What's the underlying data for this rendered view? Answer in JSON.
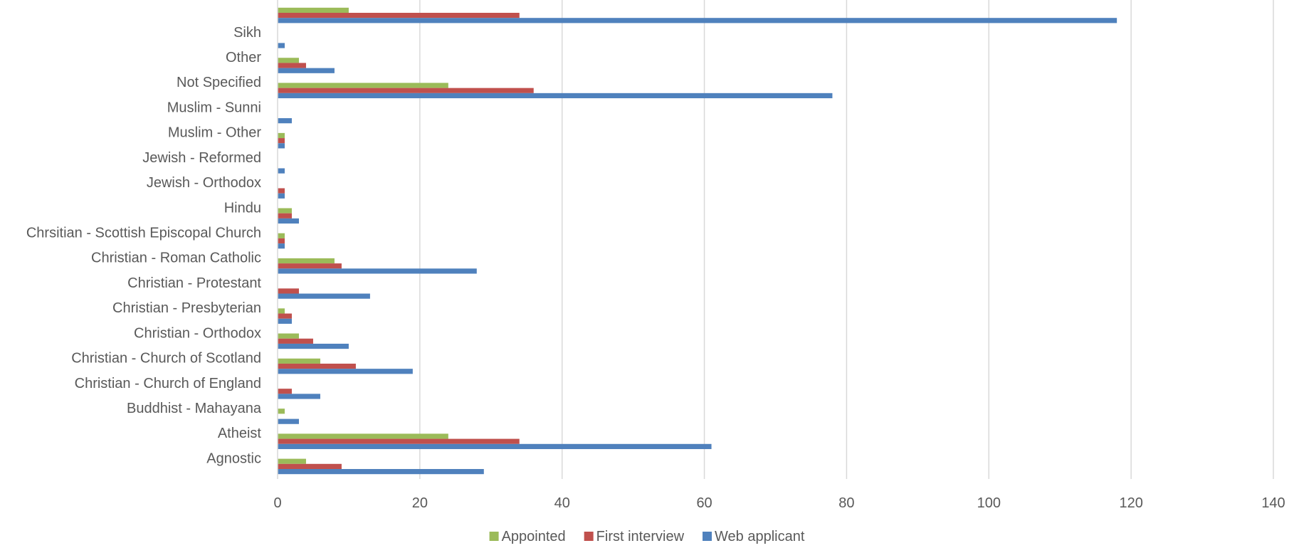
{
  "chart_data": {
    "type": "bar",
    "orientation": "horizontal",
    "categories": [
      "Agnostic",
      "Atheist",
      "Buddhist - Mahayana",
      "Christian - Church of England",
      "Christian - Church of Scotland",
      "Christian - Orthodox",
      "Christian - Presbyterian",
      "Christian - Protestant",
      "Christian - Roman Catholic",
      "Chrsitian - Scottish Episcopal Church",
      "Hindu",
      "Jewish - Orthodox",
      "Jewish - Reformed",
      "Muslim - Other",
      "Muslim - Sunni",
      "Not Specified",
      "Other",
      "Sikh",
      ""
    ],
    "series": [
      {
        "name": "Appointed",
        "color": "#9BBB59",
        "values": [
          4,
          24,
          1,
          0,
          6,
          3,
          1,
          0,
          8,
          1,
          2,
          0,
          0,
          1,
          0,
          24,
          3,
          0,
          10
        ]
      },
      {
        "name": "First interview",
        "color": "#C0504D",
        "values": [
          9,
          34,
          0,
          2,
          11,
          5,
          2,
          3,
          9,
          1,
          2,
          1,
          0,
          1,
          0,
          36,
          4,
          0,
          34
        ]
      },
      {
        "name": "Web applicant",
        "color": "#4F81BD",
        "values": [
          29,
          61,
          3,
          6,
          19,
          10,
          2,
          13,
          28,
          1,
          3,
          1,
          1,
          1,
          2,
          78,
          8,
          1,
          118
        ]
      }
    ],
    "xlim": [
      0,
      140
    ],
    "xticks": [
      0,
      20,
      40,
      60,
      80,
      100,
      120,
      140
    ],
    "grid": true,
    "legend_position": "bottom",
    "title": "",
    "xlabel": "",
    "ylabel": ""
  }
}
